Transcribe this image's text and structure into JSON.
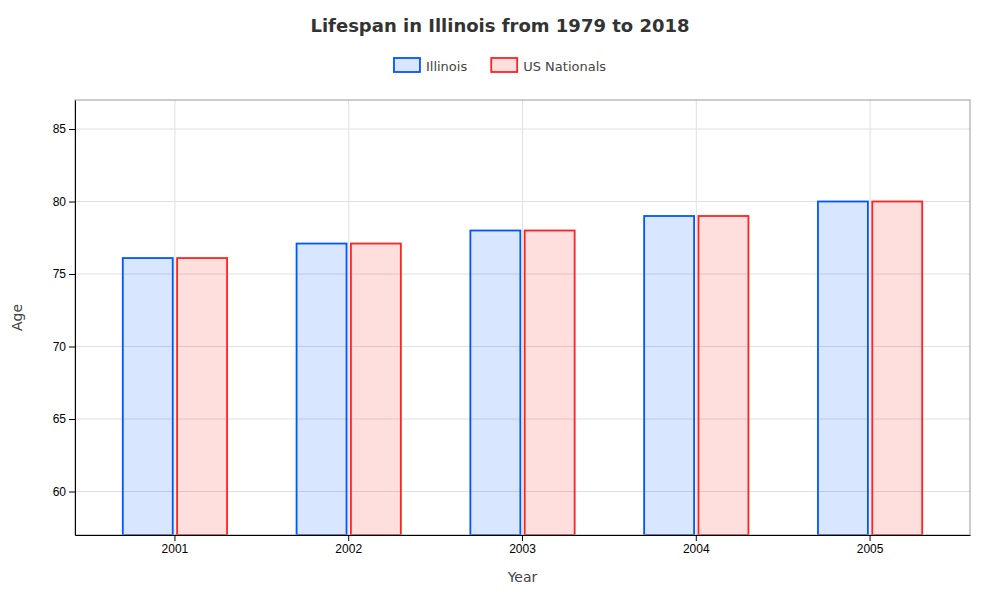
{
  "chart_data": {
    "type": "bar",
    "title": "Lifespan in Illinois from 1979 to 2018",
    "x_label": "Year",
    "y_label": "Age",
    "categories": [
      "2001",
      "2002",
      "2003",
      "2004",
      "2005"
    ],
    "series": [
      {
        "name": "Illinois",
        "color": "#0055ff",
        "values": [
          76.1,
          77.1,
          78.0,
          79.0,
          80.0
        ]
      },
      {
        "name": "US Nationals",
        "color": "#ff2222",
        "values": [
          76.1,
          77.1,
          78.0,
          79.0,
          80.0
        ]
      }
    ],
    "ylim": [
      57,
      87
    ],
    "yticks": [
      60,
      65,
      70,
      75,
      80,
      85
    ],
    "grid": true,
    "legend": "top"
  }
}
